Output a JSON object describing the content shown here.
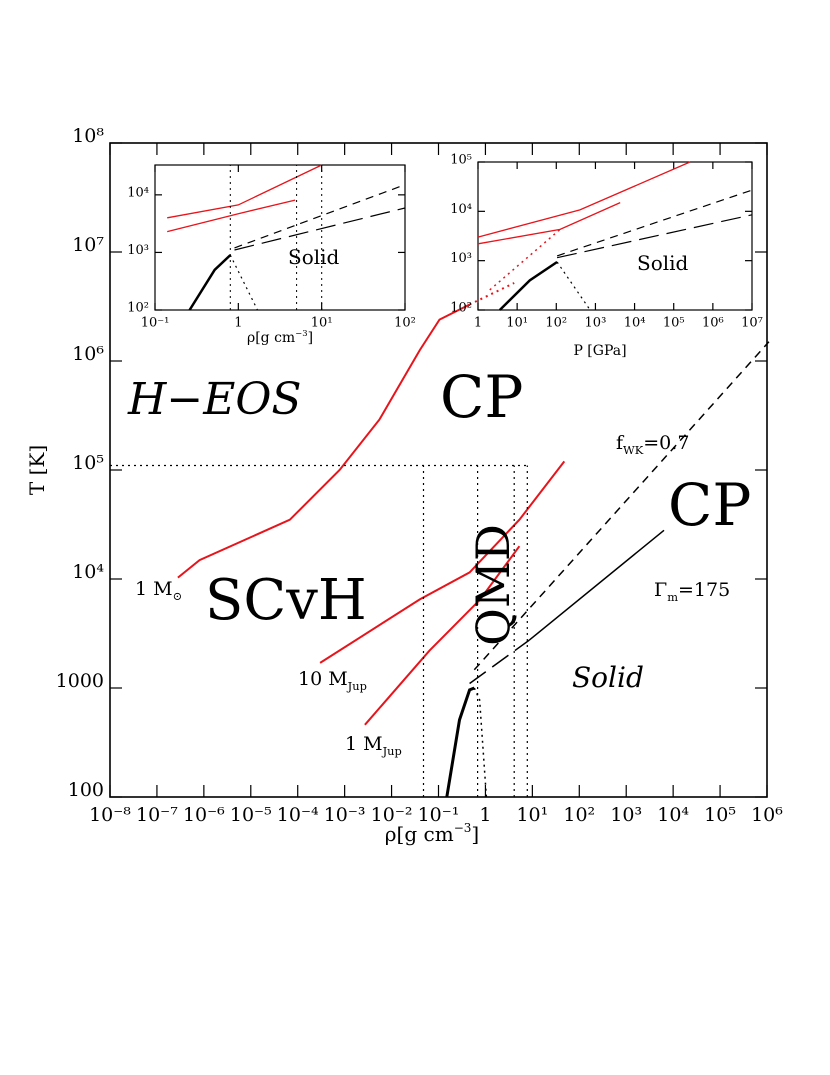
{
  "chart_data": [
    {
      "type": "line",
      "log_x": true,
      "log_y": true,
      "xlabel": {
        "text": "ρ[g cm",
        "sup": "−3",
        "after": "]"
      },
      "ylabel": {
        "text": "T [K]"
      },
      "xlim": [
        1e-08,
        1000000
      ],
      "ylim": [
        100,
        100000000
      ],
      "xticks": [
        {
          "value": 1e-08,
          "label": "10⁻⁸"
        },
        {
          "value": 1e-07,
          "label": "10⁻⁷"
        },
        {
          "value": 1e-06,
          "label": "10⁻⁶"
        },
        {
          "value": 1e-05,
          "label": "10⁻⁵"
        },
        {
          "value": 0.0001,
          "label": "10⁻⁴"
        },
        {
          "value": 0.001,
          "label": "10⁻³"
        },
        {
          "value": 0.01,
          "label": "10⁻²"
        },
        {
          "value": 0.1,
          "label": "10⁻¹"
        },
        1,
        {
          "value": 10,
          "label": "10¹"
        },
        {
          "value": 100,
          "label": "10²"
        },
        {
          "value": 1000,
          "label": "10³"
        },
        {
          "value": 10000,
          "label": "10⁴"
        },
        {
          "value": 100000,
          "label": "10⁵"
        },
        {
          "value": 1000000,
          "label": "10⁶"
        }
      ],
      "yticks": [
        100,
        1000,
        {
          "value": 10000,
          "label": "10⁴"
        },
        {
          "value": 100000,
          "label": "10⁵"
        },
        {
          "value": 1000000,
          "label": "10⁶"
        },
        {
          "value": 10000000,
          "label": "10⁷"
        },
        {
          "value": 100000000,
          "label": "10⁸"
        }
      ],
      "series": [
        {
          "color": "#e8141b",
          "style": "solid",
          "width": 2,
          "x": [
            2.8e-07,
            8.1e-07,
            6.8e-05,
            0.00078,
            0.0055,
            0.04,
            0.105,
            0.46
          ],
          "values": [
            10300,
            14900,
            35000,
            100000,
            290000,
            1260000,
            2400000,
            3300000
          ]
        },
        {
          "color": "#e8141b",
          "style": "dotted",
          "width": 2,
          "x": [
            0.46,
            4.1
          ],
          "values": [
            3300000,
            5200000
          ]
        },
        {
          "color": "#e8141b",
          "style": "solid",
          "width": 2,
          "x": [
            0.0003,
            0.04,
            0.46,
            5.3,
            48
          ],
          "values": [
            1700,
            6500,
            11500,
            35000,
            120000
          ]
        },
        {
          "color": "#e8141b",
          "style": "solid",
          "width": 2,
          "x": [
            0.0027,
            0.064,
            0.75,
            5.3
          ],
          "values": [
            460,
            2200,
            6400,
            20000
          ]
        },
        {
          "color": "#000000",
          "style": "solid",
          "width": 3,
          "x": [
            0.15,
            0.28,
            0.46,
            0.58
          ],
          "values": [
            100,
            510,
            960,
            1000
          ]
        },
        {
          "color": "#000000",
          "style": "dotted",
          "width": 1.5,
          "x": [
            0.58,
            0.75,
            1.05
          ],
          "values": [
            1000,
            780,
            100
          ]
        },
        {
          "color": "#000000",
          "style": "long-dashed",
          "width": 1.5,
          "x": [
            0.46,
            8.6
          ],
          "values": [
            1100,
            2750
          ]
        },
        {
          "color": "#000000",
          "style": "solid",
          "width": 1.5,
          "x": [
            8.6,
            6400
          ],
          "values": [
            2750,
            28000
          ]
        },
        {
          "color": "#000000",
          "style": "dashed",
          "width": 1.5,
          "x": [
            0.58,
            1100000
          ],
          "values": [
            1470,
            1500000
          ]
        },
        {
          "color": "#000000",
          "style": "dotted",
          "width": 1.2,
          "x": [
            1e-08,
            7.8
          ],
          "values": [
            110000,
            110000
          ]
        },
        {
          "color": "#000000",
          "style": "dotted",
          "width": 1.2,
          "x": [
            0.048,
            0.048
          ],
          "values": [
            100,
            110000
          ]
        },
        {
          "color": "#000000",
          "style": "dotted",
          "width": 1.2,
          "x": [
            0.68,
            0.68
          ],
          "values": [
            100,
            110000
          ]
        },
        {
          "color": "#000000",
          "style": "dotted",
          "width": 1.2,
          "x": [
            4.1,
            4.1
          ],
          "values": [
            100,
            110000
          ]
        },
        {
          "color": "#000000",
          "style": "dotted",
          "width": 1.2,
          "x": [
            7.8,
            7.8
          ],
          "values": [
            100,
            110000
          ]
        }
      ],
      "annotations": [
        {
          "text": "H−EOS",
          "italic": true
        },
        {
          "text": "CP"
        },
        {
          "text": "CP"
        },
        {
          "text": "SCvH"
        },
        {
          "text": "QMD"
        },
        {
          "text": "Solid",
          "italic": true
        },
        {
          "text": "f",
          "sub": "WK",
          "after": "=0.7"
        },
        {
          "text": "Γ",
          "sub": "m",
          "after": "=175"
        },
        {
          "text": "1 M",
          "sub": "⊙",
          "color": "#e8141b"
        },
        {
          "text": "10 M",
          "sub": "Jup",
          "color": "#e8141b"
        },
        {
          "text": "1 M",
          "sub": "Jup",
          "color": "#e8141b"
        }
      ]
    },
    {
      "type": "line",
      "log_x": true,
      "log_y": true,
      "xlabel": {
        "text": "ρ[g cm",
        "sup": "−3",
        "after": "]"
      },
      "xlim": [
        0.1,
        100
      ],
      "ylim": [
        100,
        33000
      ],
      "xticks": [
        {
          "value": 0.1,
          "label": "10⁻¹"
        },
        1,
        {
          "value": 10,
          "label": "10¹"
        },
        {
          "value": 100,
          "label": "10²"
        }
      ],
      "yticks": [
        {
          "value": 100,
          "label": "10²"
        },
        {
          "value": 1000,
          "label": "10³"
        },
        {
          "value": 10000,
          "label": "10⁴"
        }
      ],
      "series": [
        {
          "color": "#e8141b",
          "style": "solid",
          "width": 1.3,
          "x": [
            0.14,
            1,
            10
          ],
          "values": [
            4000,
            6700,
            33000
          ]
        },
        {
          "color": "#e8141b",
          "style": "solid",
          "width": 1.3,
          "x": [
            0.14,
            1,
            4.8
          ],
          "values": [
            2300,
            4700,
            8100
          ]
        },
        {
          "color": "#000000",
          "style": "solid",
          "width": 2.5,
          "x": [
            0.26,
            0.52,
            0.8
          ],
          "values": [
            100,
            500,
            900
          ]
        },
        {
          "color": "#000000",
          "style": "dotted",
          "width": 1.2,
          "x": [
            0.8,
            1.7
          ],
          "values": [
            900,
            100
          ]
        },
        {
          "color": "#000000",
          "style": "dashed",
          "width": 1.2,
          "x": [
            0.9,
            100
          ],
          "values": [
            1200,
            15000
          ]
        },
        {
          "color": "#000000",
          "style": "long-dashed",
          "width": 1.2,
          "x": [
            0.9,
            100
          ],
          "values": [
            1100,
            5900
          ]
        },
        {
          "color": "#000000",
          "style": "dotted",
          "width": 1,
          "x": [
            0.8,
            0.8
          ],
          "values": [
            100,
            33000
          ]
        },
        {
          "color": "#000000",
          "style": "dotted",
          "width": 1,
          "x": [
            5,
            5
          ],
          "values": [
            100,
            33000
          ]
        },
        {
          "color": "#000000",
          "style": "dotted",
          "width": 1,
          "x": [
            10,
            10
          ],
          "values": [
            100,
            33000
          ]
        }
      ],
      "annotations": [
        {
          "text": "Solid"
        }
      ]
    },
    {
      "type": "line",
      "log_x": true,
      "log_y": true,
      "xlabel": {
        "text": "P [GPa]"
      },
      "xlim": [
        1,
        10000000
      ],
      "ylim": [
        100,
        100000
      ],
      "xticks": [
        1,
        {
          "value": 10,
          "label": "10¹"
        },
        {
          "value": 100,
          "label": "10²"
        },
        {
          "value": 1000,
          "label": "10³"
        },
        {
          "value": 10000,
          "label": "10⁴"
        },
        {
          "value": 100000,
          "label": "10⁵"
        },
        {
          "value": 1000000,
          "label": "10⁶"
        },
        {
          "value": 10000000,
          "label": "10⁷"
        }
      ],
      "yticks": [
        {
          "value": 100,
          "label": "10²"
        },
        {
          "value": 1000,
          "label": "10³"
        },
        {
          "value": 10000,
          "label": "10⁴"
        },
        {
          "value": 100000,
          "label": "10⁵"
        }
      ],
      "series": [
        {
          "color": "#e8141b",
          "style": "solid",
          "width": 1.3,
          "x": [
            1,
            400,
            260000
          ],
          "values": [
            3000,
            10700,
            100000
          ]
        },
        {
          "color": "#e8141b",
          "style": "solid",
          "width": 1.3,
          "x": [
            1,
            125,
            4300
          ],
          "values": [
            2200,
            4300,
            15000
          ]
        },
        {
          "color": "#e8141b",
          "style": "dotted",
          "width": 1.5,
          "x": [
            2,
            125
          ],
          "values": [
            255,
            4300
          ]
        },
        {
          "color": "#000000",
          "style": "solid",
          "width": 2.5,
          "x": [
            3.6,
            21,
            105
          ],
          "values": [
            100,
            400,
            940
          ]
        },
        {
          "color": "#000000",
          "style": "dotted",
          "width": 1.2,
          "x": [
            105,
            730
          ],
          "values": [
            940,
            100
          ]
        },
        {
          "color": "#000000",
          "style": "dashed",
          "width": 1.2,
          "x": [
            105,
            10000000
          ],
          "values": [
            1250,
            27000
          ]
        },
        {
          "color": "#000000",
          "style": "long-dashed",
          "width": 1.2,
          "x": [
            105,
            10000000
          ],
          "values": [
            1150,
            8500
          ]
        }
      ],
      "annotations": [
        {
          "text": "Solid"
        }
      ]
    }
  ]
}
